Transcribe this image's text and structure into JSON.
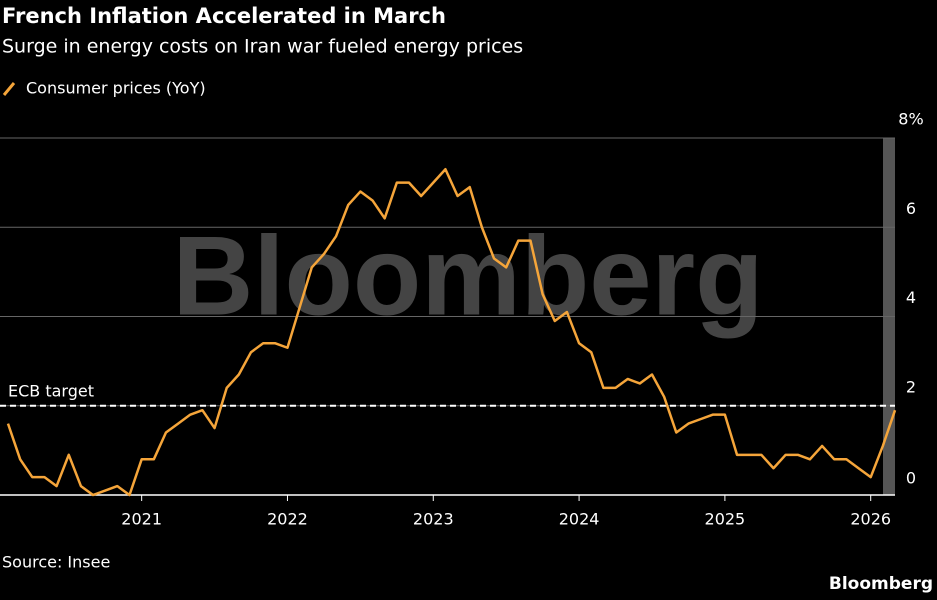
{
  "chart_data": {
    "type": "line",
    "title": "French Inflation Accelerated in March",
    "subtitle": "Surge in energy costs on Iran war fueled energy prices",
    "source": "Source: Insee",
    "branding": "Bloomberg",
    "watermark": "Bloomberg",
    "annotation": {
      "label": "ECB target",
      "value": 2
    },
    "x": [
      "2020-02",
      "2020-03",
      "2020-04",
      "2020-05",
      "2020-06",
      "2020-07",
      "2020-08",
      "2020-09",
      "2020-10",
      "2020-11",
      "2020-12",
      "2021-01",
      "2021-02",
      "2021-03",
      "2021-04",
      "2021-05",
      "2021-06",
      "2021-07",
      "2021-08",
      "2021-09",
      "2021-10",
      "2021-11",
      "2021-12",
      "2022-01",
      "2022-02",
      "2022-03",
      "2022-04",
      "2022-05",
      "2022-06",
      "2022-07",
      "2022-08",
      "2022-09",
      "2022-10",
      "2022-11",
      "2022-12",
      "2023-01",
      "2023-02",
      "2023-03",
      "2023-04",
      "2023-05",
      "2023-06",
      "2023-07",
      "2023-08",
      "2023-09",
      "2023-10",
      "2023-11",
      "2023-12",
      "2024-01",
      "2024-02",
      "2024-03",
      "2024-04",
      "2024-05",
      "2024-06",
      "2024-07",
      "2024-08",
      "2024-09",
      "2024-10",
      "2024-11",
      "2024-12",
      "2025-01",
      "2025-02",
      "2025-03",
      "2025-04",
      "2025-05",
      "2025-06",
      "2025-07",
      "2025-08",
      "2025-09",
      "2025-10",
      "2025-11",
      "2025-12",
      "2026-01",
      "2026-02",
      "2026-03"
    ],
    "series": [
      {
        "name": "Consumer prices (YoY)",
        "color": "#f5a53a",
        "values": [
          1.6,
          0.8,
          0.4,
          0.4,
          0.2,
          0.9,
          0.2,
          0.0,
          0.1,
          0.2,
          0.0,
          0.8,
          0.8,
          1.4,
          1.6,
          1.8,
          1.9,
          1.5,
          2.4,
          2.7,
          3.2,
          3.4,
          3.4,
          3.3,
          4.2,
          5.1,
          5.4,
          5.8,
          6.5,
          6.8,
          6.6,
          6.2,
          7.0,
          7.0,
          6.7,
          7.0,
          7.3,
          6.7,
          6.9,
          6.0,
          5.3,
          5.1,
          5.7,
          5.7,
          4.5,
          3.9,
          4.1,
          3.4,
          3.2,
          2.4,
          2.4,
          2.6,
          2.5,
          2.7,
          2.2,
          1.4,
          1.6,
          1.7,
          1.8,
          1.8,
          0.9,
          0.9,
          0.9,
          0.6,
          0.9,
          0.9,
          0.8,
          1.1,
          0.8,
          0.8,
          0.6,
          0.4,
          1.1,
          1.9
        ]
      }
    ],
    "xlim": [
      "2020-02",
      "2026-03"
    ],
    "xticks": [
      {
        "value": "2021-01",
        "label": "2021"
      },
      {
        "value": "2022-01",
        "label": "2022"
      },
      {
        "value": "2023-01",
        "label": "2023"
      },
      {
        "value": "2024-01",
        "label": "2024"
      },
      {
        "value": "2025-01",
        "label": "2025"
      },
      {
        "value": "2026-01",
        "label": "2026"
      }
    ],
    "ylim": [
      0,
      8
    ],
    "yticks": [
      0,
      2,
      4,
      6,
      {
        "value": 8,
        "label": "8%"
      }
    ],
    "grid": true
  }
}
